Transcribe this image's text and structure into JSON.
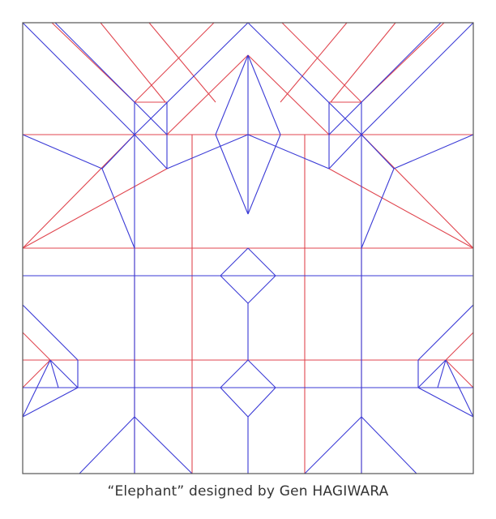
{
  "caption": "“Elephant” designed by Gen HAGIWARA",
  "colors": {
    "border": "#555555",
    "mountain": "#e0464f",
    "valley": "#3a3ad6",
    "caption_text": "#333333",
    "background": "#ffffff"
  }
}
